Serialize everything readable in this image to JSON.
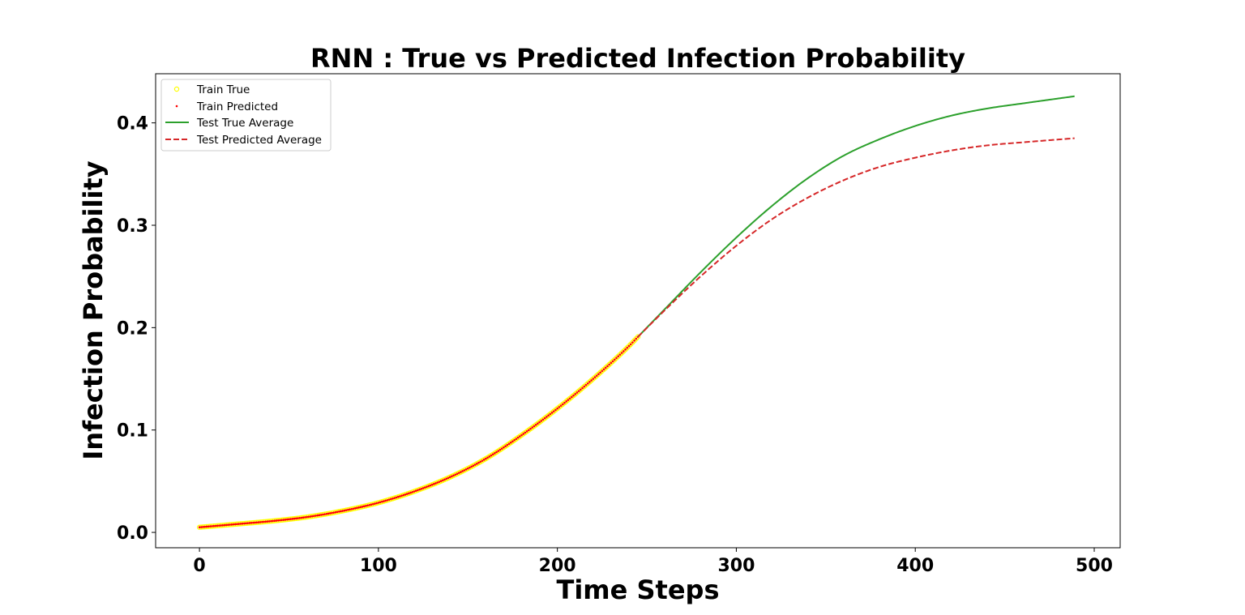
{
  "chart_data": {
    "type": "line",
    "title": "RNN : True vs Predicted Infection Probability",
    "xlabel": "Time Steps",
    "ylabel": "Infection Probability",
    "xlim": [
      -24.5,
      514.5
    ],
    "ylim": [
      -0.015,
      0.448
    ],
    "x_ticks": [
      0,
      100,
      200,
      300,
      400,
      500
    ],
    "y_ticks": [
      0.0,
      0.1,
      0.2,
      0.3,
      0.4
    ],
    "x_tick_labels": [
      "0",
      "100",
      "200",
      "300",
      "400",
      "500"
    ],
    "y_tick_labels": [
      "0.0",
      "0.1",
      "0.2",
      "0.3",
      "0.4"
    ],
    "grid": false,
    "legend_position": "upper left",
    "legend": [
      "Train True",
      "Train Predicted",
      "Test True Average",
      "Test Predicted Average"
    ],
    "colors": {
      "train_true": "#ffff00",
      "train_predicted": "#ff0000",
      "test_true_average": "#2ca02c",
      "test_predicted_average": "#d62728"
    },
    "train_true": {
      "x": [
        0,
        20,
        40,
        60,
        80,
        100,
        120,
        140,
        160,
        180,
        200,
        220,
        240,
        245
      ],
      "y": [
        0.005,
        0.008,
        0.011,
        0.015,
        0.021,
        0.029,
        0.04,
        0.054,
        0.072,
        0.095,
        0.121,
        0.15,
        0.182,
        0.191
      ]
    },
    "train_predicted": {
      "x": [
        0,
        20,
        40,
        60,
        80,
        100,
        120,
        140,
        160,
        180,
        200,
        220,
        240,
        245
      ],
      "y": [
        0.005,
        0.008,
        0.011,
        0.015,
        0.021,
        0.029,
        0.04,
        0.054,
        0.072,
        0.095,
        0.121,
        0.15,
        0.182,
        0.191
      ]
    },
    "series": [
      {
        "name": "Test True Average",
        "style": "solid",
        "x": [
          245,
          260,
          280,
          300,
          320,
          340,
          360,
          380,
          400,
          420,
          440,
          460,
          489
        ],
        "y": [
          0.191,
          0.218,
          0.254,
          0.288,
          0.319,
          0.346,
          0.368,
          0.384,
          0.397,
          0.407,
          0.414,
          0.419,
          0.426
        ]
      },
      {
        "name": "Test Predicted Average",
        "style": "dashed",
        "x": [
          245,
          260,
          280,
          300,
          320,
          340,
          360,
          380,
          400,
          420,
          440,
          460,
          489
        ],
        "y": [
          0.191,
          0.217,
          0.25,
          0.28,
          0.306,
          0.327,
          0.344,
          0.357,
          0.366,
          0.373,
          0.378,
          0.381,
          0.385
        ]
      }
    ]
  }
}
